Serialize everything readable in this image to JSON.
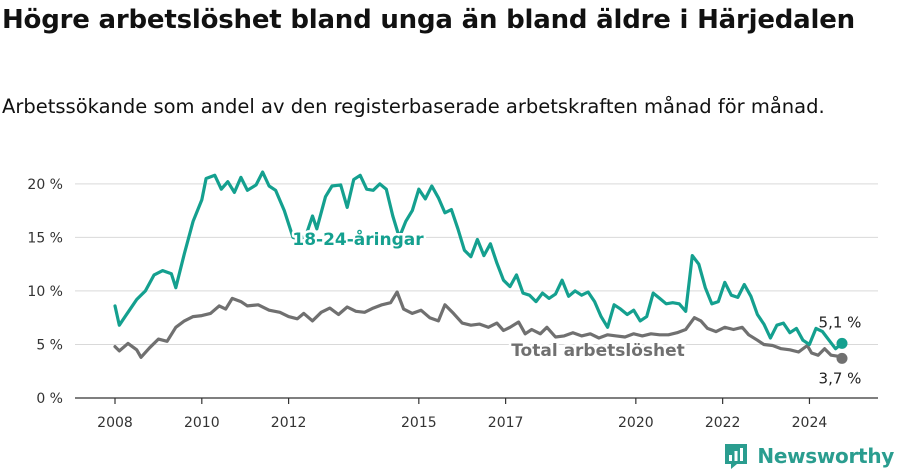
{
  "header": {
    "title": "Högre arbetslöshet bland unga än bland äldre i Härjedalen",
    "subtitle": "Arbetssökande som andel av den registerbaserade arbetskraften månad för månad."
  },
  "brand": {
    "name": "Newsworthy"
  },
  "chart_data": {
    "type": "line",
    "title": "Högre arbetslöshet bland unga än bland äldre i Härjedalen",
    "subtitle": "Arbetssökande som andel av den registerbaserade arbetskraften månad för månad.",
    "xlabel": "",
    "ylabel": "",
    "xlim": [
      2008.0,
      2024.75
    ],
    "ylim": [
      0,
      21.5
    ],
    "x_ticks": [
      2008,
      2010,
      2012,
      2015,
      2017,
      2020,
      2022,
      2024
    ],
    "y_ticks": [
      0,
      5,
      10,
      15,
      20
    ],
    "y_tick_labels": [
      "0 %",
      "5 %",
      "10 %",
      "15 %",
      "20 %"
    ],
    "grid": "horizontal",
    "series": [
      {
        "name": "18-24-åringar",
        "color": "#14a08f",
        "end_label": "5,1 %",
        "points": [
          [
            2008.0,
            8.6
          ],
          [
            2008.1,
            6.8
          ],
          [
            2008.3,
            8.0
          ],
          [
            2008.5,
            9.2
          ],
          [
            2008.7,
            10.0
          ],
          [
            2008.9,
            11.5
          ],
          [
            2009.1,
            11.9
          ],
          [
            2009.3,
            11.6
          ],
          [
            2009.4,
            10.3
          ],
          [
            2009.6,
            13.5
          ],
          [
            2009.8,
            16.5
          ],
          [
            2010.0,
            18.5
          ],
          [
            2010.1,
            20.5
          ],
          [
            2010.3,
            20.8
          ],
          [
            2010.45,
            19.5
          ],
          [
            2010.6,
            20.2
          ],
          [
            2010.75,
            19.2
          ],
          [
            2010.9,
            20.6
          ],
          [
            2011.05,
            19.4
          ],
          [
            2011.25,
            19.9
          ],
          [
            2011.4,
            21.1
          ],
          [
            2011.55,
            19.8
          ],
          [
            2011.7,
            19.4
          ],
          [
            2011.9,
            17.5
          ],
          [
            2012.1,
            15.0
          ],
          [
            2012.25,
            14.8
          ],
          [
            2012.4,
            15.2
          ],
          [
            2012.55,
            17.0
          ],
          [
            2012.65,
            15.8
          ],
          [
            2012.85,
            18.8
          ],
          [
            2013.0,
            19.8
          ],
          [
            2013.2,
            19.9
          ],
          [
            2013.35,
            17.8
          ],
          [
            2013.5,
            20.4
          ],
          [
            2013.65,
            20.8
          ],
          [
            2013.8,
            19.5
          ],
          [
            2013.95,
            19.4
          ],
          [
            2014.1,
            20.0
          ],
          [
            2014.25,
            19.5
          ],
          [
            2014.4,
            17.0
          ],
          [
            2014.55,
            15.0
          ],
          [
            2014.7,
            16.5
          ],
          [
            2014.85,
            17.5
          ],
          [
            2015.0,
            19.5
          ],
          [
            2015.15,
            18.6
          ],
          [
            2015.3,
            19.8
          ],
          [
            2015.45,
            18.7
          ],
          [
            2015.6,
            17.3
          ],
          [
            2015.75,
            17.6
          ],
          [
            2015.9,
            15.8
          ],
          [
            2016.05,
            13.8
          ],
          [
            2016.2,
            13.2
          ],
          [
            2016.35,
            14.8
          ],
          [
            2016.5,
            13.3
          ],
          [
            2016.65,
            14.4
          ],
          [
            2016.8,
            12.6
          ],
          [
            2016.95,
            11.0
          ],
          [
            2017.1,
            10.4
          ],
          [
            2017.25,
            11.5
          ],
          [
            2017.4,
            9.8
          ],
          [
            2017.55,
            9.6
          ],
          [
            2017.7,
            9.0
          ],
          [
            2017.85,
            9.8
          ],
          [
            2018.0,
            9.3
          ],
          [
            2018.15,
            9.7
          ],
          [
            2018.3,
            11.0
          ],
          [
            2018.45,
            9.5
          ],
          [
            2018.6,
            10.0
          ],
          [
            2018.75,
            9.6
          ],
          [
            2018.9,
            9.9
          ],
          [
            2019.05,
            9.0
          ],
          [
            2019.2,
            7.6
          ],
          [
            2019.35,
            6.6
          ],
          [
            2019.5,
            8.7
          ],
          [
            2019.65,
            8.3
          ],
          [
            2019.8,
            7.8
          ],
          [
            2019.95,
            8.2
          ],
          [
            2020.1,
            7.2
          ],
          [
            2020.25,
            7.6
          ],
          [
            2020.4,
            9.8
          ],
          [
            2020.55,
            9.3
          ],
          [
            2020.7,
            8.8
          ],
          [
            2020.85,
            8.9
          ],
          [
            2021.0,
            8.8
          ],
          [
            2021.15,
            8.1
          ],
          [
            2021.3,
            13.3
          ],
          [
            2021.45,
            12.5
          ],
          [
            2021.6,
            10.3
          ],
          [
            2021.75,
            8.8
          ],
          [
            2021.9,
            9.0
          ],
          [
            2022.05,
            10.8
          ],
          [
            2022.2,
            9.6
          ],
          [
            2022.35,
            9.4
          ],
          [
            2022.5,
            10.6
          ],
          [
            2022.65,
            9.5
          ],
          [
            2022.8,
            7.8
          ],
          [
            2022.95,
            6.9
          ],
          [
            2023.1,
            5.6
          ],
          [
            2023.25,
            6.8
          ],
          [
            2023.4,
            7.0
          ],
          [
            2023.55,
            6.1
          ],
          [
            2023.7,
            6.5
          ],
          [
            2023.85,
            5.4
          ],
          [
            2024.0,
            5.0
          ],
          [
            2024.15,
            6.5
          ],
          [
            2024.3,
            6.2
          ],
          [
            2024.45,
            5.4
          ],
          [
            2024.6,
            4.6
          ],
          [
            2024.75,
            5.1
          ]
        ]
      },
      {
        "name": "Total arbetslöshet",
        "color": "#707070",
        "end_label": "3,7 %",
        "points": [
          [
            2008.0,
            4.8
          ],
          [
            2008.1,
            4.4
          ],
          [
            2008.3,
            5.1
          ],
          [
            2008.5,
            4.5
          ],
          [
            2008.6,
            3.8
          ],
          [
            2008.8,
            4.7
          ],
          [
            2009.0,
            5.5
          ],
          [
            2009.2,
            5.3
          ],
          [
            2009.4,
            6.6
          ],
          [
            2009.6,
            7.2
          ],
          [
            2009.8,
            7.6
          ],
          [
            2010.0,
            7.7
          ],
          [
            2010.2,
            7.9
          ],
          [
            2010.4,
            8.6
          ],
          [
            2010.55,
            8.3
          ],
          [
            2010.7,
            9.3
          ],
          [
            2010.9,
            9.0
          ],
          [
            2011.05,
            8.6
          ],
          [
            2011.3,
            8.7
          ],
          [
            2011.55,
            8.2
          ],
          [
            2011.8,
            8.0
          ],
          [
            2012.0,
            7.6
          ],
          [
            2012.2,
            7.4
          ],
          [
            2012.35,
            7.9
          ],
          [
            2012.55,
            7.2
          ],
          [
            2012.75,
            8.0
          ],
          [
            2012.95,
            8.4
          ],
          [
            2013.15,
            7.8
          ],
          [
            2013.35,
            8.5
          ],
          [
            2013.55,
            8.1
          ],
          [
            2013.75,
            8.0
          ],
          [
            2013.95,
            8.4
          ],
          [
            2014.15,
            8.7
          ],
          [
            2014.35,
            8.9
          ],
          [
            2014.5,
            9.9
          ],
          [
            2014.65,
            8.3
          ],
          [
            2014.85,
            7.9
          ],
          [
            2015.05,
            8.2
          ],
          [
            2015.25,
            7.5
          ],
          [
            2015.45,
            7.2
          ],
          [
            2015.6,
            8.7
          ],
          [
            2015.8,
            7.9
          ],
          [
            2016.0,
            7.0
          ],
          [
            2016.2,
            6.8
          ],
          [
            2016.4,
            6.9
          ],
          [
            2016.6,
            6.6
          ],
          [
            2016.8,
            7.0
          ],
          [
            2016.95,
            6.3
          ],
          [
            2017.1,
            6.6
          ],
          [
            2017.3,
            7.1
          ],
          [
            2017.45,
            6.0
          ],
          [
            2017.6,
            6.4
          ],
          [
            2017.8,
            6.0
          ],
          [
            2017.95,
            6.6
          ],
          [
            2018.15,
            5.7
          ],
          [
            2018.35,
            5.8
          ],
          [
            2018.55,
            6.1
          ],
          [
            2018.75,
            5.8
          ],
          [
            2018.95,
            6.0
          ],
          [
            2019.15,
            5.6
          ],
          [
            2019.35,
            5.9
          ],
          [
            2019.55,
            5.8
          ],
          [
            2019.75,
            5.7
          ],
          [
            2019.95,
            6.0
          ],
          [
            2020.15,
            5.8
          ],
          [
            2020.35,
            6.0
          ],
          [
            2020.55,
            5.9
          ],
          [
            2020.75,
            5.9
          ],
          [
            2020.95,
            6.1
          ],
          [
            2021.15,
            6.4
          ],
          [
            2021.35,
            7.5
          ],
          [
            2021.5,
            7.2
          ],
          [
            2021.65,
            6.5
          ],
          [
            2021.85,
            6.2
          ],
          [
            2022.05,
            6.6
          ],
          [
            2022.25,
            6.4
          ],
          [
            2022.45,
            6.6
          ],
          [
            2022.6,
            5.9
          ],
          [
            2022.8,
            5.4
          ],
          [
            2022.95,
            5.0
          ],
          [
            2023.15,
            4.9
          ],
          [
            2023.35,
            4.6
          ],
          [
            2023.55,
            4.5
          ],
          [
            2023.75,
            4.3
          ],
          [
            2023.95,
            4.9
          ],
          [
            2024.05,
            4.2
          ],
          [
            2024.2,
            4.0
          ],
          [
            2024.35,
            4.6
          ],
          [
            2024.5,
            4.0
          ],
          [
            2024.65,
            3.9
          ],
          [
            2024.75,
            3.7
          ]
        ]
      }
    ],
    "annotations": [
      {
        "text": "18-24-åringar",
        "series": 0
      },
      {
        "text": "Total arbetslöshet",
        "series": 1
      }
    ]
  }
}
